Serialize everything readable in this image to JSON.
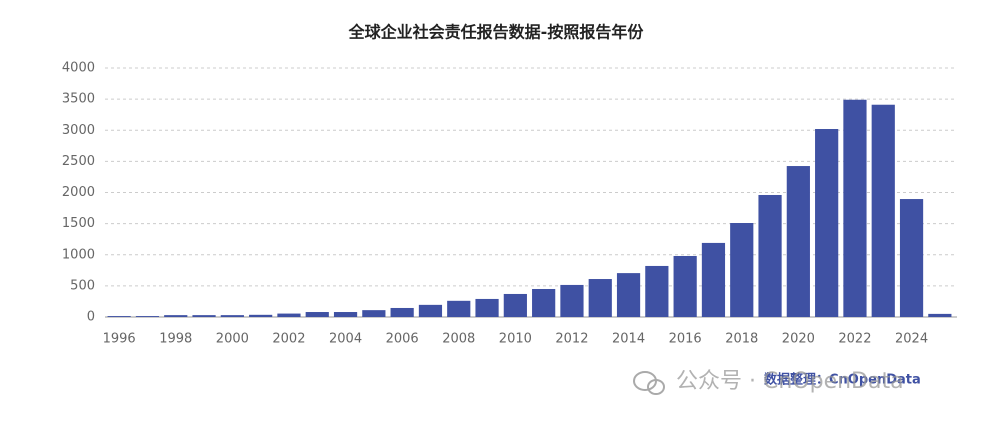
{
  "chart_data": {
    "type": "bar",
    "title": "全球企业社会责任报告数据-按照报告年份",
    "x": [
      1996,
      1997,
      1998,
      1999,
      2000,
      2001,
      2002,
      2003,
      2004,
      2005,
      2006,
      2007,
      2008,
      2009,
      2010,
      2011,
      2012,
      2013,
      2014,
      2015,
      2016,
      2017,
      2018,
      2019,
      2020,
      2021,
      2022,
      2023,
      2024,
      2025
    ],
    "values": [
      15,
      15,
      30,
      30,
      30,
      35,
      55,
      80,
      80,
      110,
      145,
      195,
      260,
      290,
      370,
      450,
      515,
      610,
      705,
      820,
      980,
      1190,
      1510,
      1960,
      2425,
      3020,
      3490,
      3410,
      1895,
      50
    ],
    "color": "#3f51a3",
    "xlim": [
      1995.5,
      2025.5
    ],
    "xticks": [
      1996,
      1998,
      2000,
      2002,
      2004,
      2006,
      2008,
      2010,
      2012,
      2014,
      2016,
      2018,
      2020,
      2022,
      2024
    ],
    "ylim": [
      0,
      4000
    ],
    "yticks": [
      0,
      500,
      1000,
      1500,
      2000,
      2500,
      3000,
      3500,
      4000
    ],
    "grid": true,
    "source": "数据整理：CnOpenData",
    "watermark": "公众号 · CnOpenData"
  }
}
